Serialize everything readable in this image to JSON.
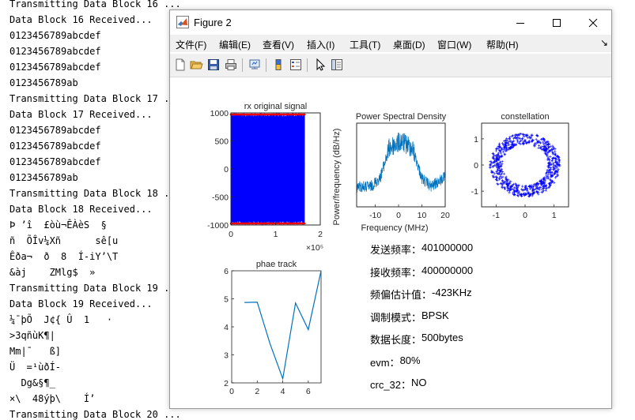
{
  "console": {
    "lines": [
      "Transmitting Data Block 16 ...",
      "Data Block 16 Received...",
      "0123456789abcdef",
      "0123456789abcdef",
      "0123456789abcdef",
      "0123456789ab",
      "Transmitting Data Block 17 ...",
      "Data Block 17 Received...",
      "0123456789abcdef",
      "0123456789abcdef",
      "0123456789abcdef",
      "0123456789ab",
      "Transmitting Data Block 18 ...",
      "Data Block 18 Received...",
      "Þ ’î  £òù¬ÊÀèS  §",
      "ñ  ÕÎv¼Xñ      sê[u",
      "Êða¬  ð  8  Í-iY’\\T",
      "&àj    ZMlg$  »",
      "Transmitting Data Block 19 ...",
      "Data Block 19 Received...",
      "¼¯þÕ  J¢{ Û  1   ·",
      ">3qñùK¶|",
      "Mm|¯   ß]",
      "Ü  =¹ùðÍ-",
      "  Dg&§¶_",
      "×\\  48ýþ\\    Í’",
      "Transmitting Data Block 20 ..."
    ]
  },
  "window": {
    "title": "Figure 2",
    "controls": {
      "minimize": "—",
      "maximize": "☐",
      "close": "✕"
    }
  },
  "menu": [
    "文件(F)",
    "编辑(E)",
    "查看(V)",
    "插入(I)",
    "工具(T)",
    "桌面(D)",
    "窗口(W)",
    "帮助(H)"
  ],
  "menu_corner": "↘",
  "toolbar": [
    "new-file-icon",
    "open-folder-icon",
    "save-icon",
    "print-icon",
    "link-icon",
    "colorbar-icon",
    "legend-icon",
    "pointer-icon",
    "property-editor-icon"
  ],
  "colors": {
    "signal_blue": "#0000ff",
    "signal_red": "#ff0000",
    "plot_blue": "#0072bd"
  },
  "chart_data": [
    {
      "type": "line",
      "title": "rx original signal",
      "xlim": [
        0,
        200000
      ],
      "ylim": [
        -1000,
        1000
      ],
      "xticks": [
        "0",
        "1",
        "2"
      ],
      "xscale_label": "×10⁵",
      "yticks": [
        "1000",
        "500",
        "0",
        "-500",
        "-1000"
      ],
      "series": [
        {
          "values_range": [
            -1000,
            1000
          ],
          "x_range": [
            0,
            165000
          ]
        },
        {
          "values": [
            1000,
            -1000
          ]
        }
      ]
    },
    {
      "type": "line",
      "title": "Power Spectral Density",
      "xlabel": "Frequency (MHz)",
      "ylabel": "Power/frequency (dB/Hz)",
      "xlim": [
        -18,
        20
      ],
      "xticks": [
        "-10",
        "0",
        "10",
        "20"
      ]
    },
    {
      "type": "scatter",
      "title": "constellation",
      "xlim": [
        -1.5,
        1.5
      ],
      "ylim": [
        -1.6,
        1.6
      ],
      "xticks": [
        "-1",
        "0",
        "1"
      ],
      "yticks": [
        "1",
        "0",
        "-1"
      ],
      "ring_radius": 1.0
    },
    {
      "type": "line",
      "title": "phae track",
      "xlim": [
        0,
        7
      ],
      "ylim": [
        2,
        6
      ],
      "xticks": [
        "0",
        "2",
        "4",
        "6"
      ],
      "yticks": [
        "6",
        "5",
        "4",
        "3",
        "2"
      ],
      "x": [
        1,
        2,
        3,
        4,
        5,
        6,
        7
      ],
      "values": [
        4.87,
        4.88,
        3.4,
        2.15,
        4.85,
        3.9,
        6.0
      ]
    }
  ],
  "info": [
    {
      "label": "发送频率：",
      "value": "401000000"
    },
    {
      "label": "接收频率：",
      "value": "400000000"
    },
    {
      "label": "频偏估计值：",
      "value": "-423KHz"
    },
    {
      "label": "调制模式：",
      "value": "BPSK"
    },
    {
      "label": "数据长度：",
      "value": "500bytes"
    },
    {
      "label": "evm：",
      "value": "80%"
    },
    {
      "label": "crc_32：",
      "value": "NO"
    }
  ]
}
